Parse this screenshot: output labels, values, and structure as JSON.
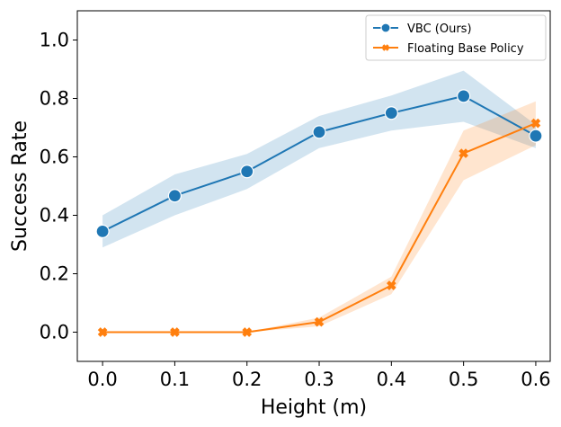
{
  "chart_data": {
    "type": "line",
    "title": "",
    "xlabel": "Height (m)",
    "ylabel": "Success Rate",
    "xlim": [
      -0.035,
      0.62
    ],
    "ylim": [
      -0.1,
      1.1
    ],
    "xticks": [
      0.0,
      0.1,
      0.2,
      0.3,
      0.4,
      0.5,
      0.6
    ],
    "xtick_labels": [
      "0.0",
      "0.1",
      "0.2",
      "0.3",
      "0.4",
      "0.5",
      "0.6"
    ],
    "yticks": [
      0.0,
      0.2,
      0.4,
      0.6,
      0.8,
      1.0
    ],
    "ytick_labels": [
      "0.0",
      "0.2",
      "0.4",
      "0.6",
      "0.8",
      "1.0"
    ],
    "grid": false,
    "legend_position": "top-right",
    "x": [
      0.0,
      0.1,
      0.2,
      0.3,
      0.4,
      0.5,
      0.6
    ],
    "series": [
      {
        "name": "VBC (Ours)",
        "color": "#1f77b4",
        "marker": "circle",
        "values": [
          0.345,
          0.467,
          0.55,
          0.685,
          0.75,
          0.808,
          0.672
        ],
        "band_lower": [
          0.29,
          0.4,
          0.49,
          0.63,
          0.69,
          0.72,
          0.63
        ],
        "band_upper": [
          0.4,
          0.54,
          0.61,
          0.74,
          0.81,
          0.895,
          0.71
        ]
      },
      {
        "name": "Floating Base Policy",
        "color": "#ff7f0e",
        "marker": "x",
        "values": [
          0.0,
          0.0,
          0.0,
          0.035,
          0.16,
          0.612,
          0.715
        ],
        "band_lower": [
          0.0,
          0.0,
          0.0,
          0.02,
          0.13,
          0.52,
          0.64
        ],
        "band_upper": [
          0.0,
          0.0,
          0.0,
          0.05,
          0.19,
          0.69,
          0.79
        ]
      }
    ]
  }
}
